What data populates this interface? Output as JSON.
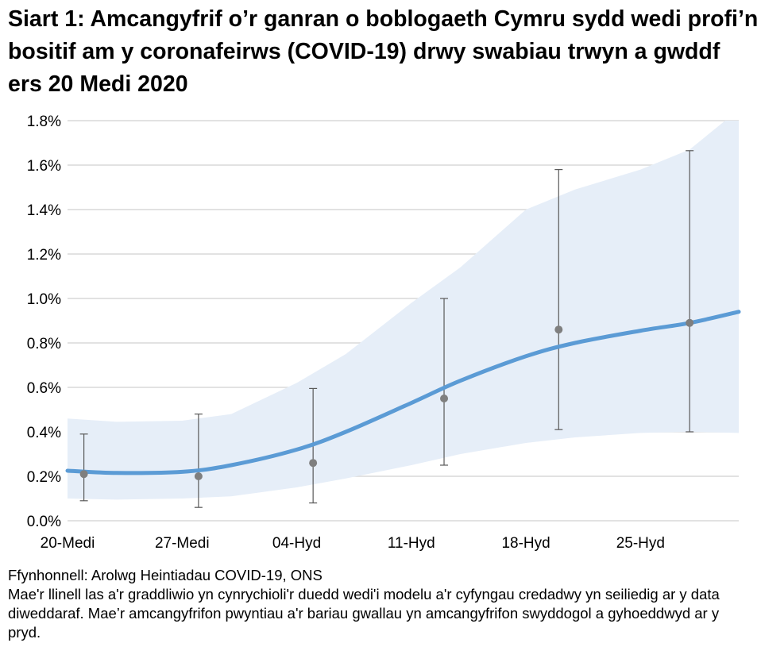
{
  "title": "Siart 1: Amcangyfrif o’r ganran o boblogaeth Cymru sydd wedi profi’n bositif am y coronafeirws (COVID-19) drwy swabiau trwyn a gwddf ers 20 Medi 2020",
  "source": "Ffynhonnell: Arolwg Heintiadau COVID-19, ONS",
  "note": "Mae'r llinell las a'r graddliwio yn cynrychioli'r duedd wedi'i modelu a'r cyfyngau credadwy yn seiliedig ar y data diweddaraf. Mae’r amcangyfrifon pwyntiau a'r bariau gwallau yn amcangyfrifon swyddogol a gyhoeddwyd ar y pryd.",
  "chart_data": {
    "type": "line",
    "title": "",
    "xlabel": "",
    "ylabel": "",
    "xlim": [
      "2020-09-20",
      "2020-10-31"
    ],
    "ylim": [
      0,
      1.8
    ],
    "grid": true,
    "x_ticks": [
      {
        "date": "2020-09-20",
        "label": "20-Medi"
      },
      {
        "date": "2020-09-27",
        "label": "27-Medi"
      },
      {
        "date": "2020-10-04",
        "label": "04-Hyd"
      },
      {
        "date": "2020-10-11",
        "label": "11-Hyd"
      },
      {
        "date": "2020-10-18",
        "label": "18-Hyd"
      },
      {
        "date": "2020-10-25",
        "label": "25-Hyd"
      }
    ],
    "y_ticks": [
      {
        "value": 0,
        "label": "0.0%"
      },
      {
        "value": 0.2,
        "label": "0.2%"
      },
      {
        "value": 0.4,
        "label": "0.4%"
      },
      {
        "value": 0.6,
        "label": "0.6%"
      },
      {
        "value": 0.8,
        "label": "0.8%"
      },
      {
        "value": 1.0,
        "label": "1.0%"
      },
      {
        "value": 1.2,
        "label": "1.2%"
      },
      {
        "value": 1.4,
        "label": "1.4%"
      },
      {
        "value": 1.6,
        "label": "1.6%"
      },
      {
        "value": 1.8,
        "label": "1.8%"
      }
    ],
    "colors": {
      "trend": "#5b9bd5",
      "band": "#e6eef8",
      "points": "#7f7f7f",
      "error_bars": "#595959",
      "grid": "#d9d9d9"
    },
    "modelled_trend": [
      {
        "date": "2020-09-20",
        "value": 0.225,
        "lower": 0.1,
        "upper": 0.46
      },
      {
        "date": "2020-09-23",
        "value": 0.215,
        "lower": 0.095,
        "upper": 0.445
      },
      {
        "date": "2020-09-27",
        "value": 0.22,
        "lower": 0.1,
        "upper": 0.45
      },
      {
        "date": "2020-09-30",
        "value": 0.25,
        "lower": 0.11,
        "upper": 0.48
      },
      {
        "date": "2020-10-04",
        "value": 0.32,
        "lower": 0.15,
        "upper": 0.62
      },
      {
        "date": "2020-10-07",
        "value": 0.4,
        "lower": 0.19,
        "upper": 0.75
      },
      {
        "date": "2020-10-11",
        "value": 0.53,
        "lower": 0.25,
        "upper": 0.98
      },
      {
        "date": "2020-10-14",
        "value": 0.63,
        "lower": 0.3,
        "upper": 1.14
      },
      {
        "date": "2020-10-18",
        "value": 0.74,
        "lower": 0.35,
        "upper": 1.4
      },
      {
        "date": "2020-10-21",
        "value": 0.8,
        "lower": 0.375,
        "upper": 1.49
      },
      {
        "date": "2020-10-25",
        "value": 0.855,
        "lower": 0.395,
        "upper": 1.58
      },
      {
        "date": "2020-10-28",
        "value": 0.89,
        "lower": 0.4,
        "upper": 1.67
      },
      {
        "date": "2020-10-31",
        "value": 0.94,
        "lower": 0.395,
        "upper": 1.85
      }
    ],
    "official_estimates": [
      {
        "date": "2020-09-21",
        "value": 0.21,
        "lower": 0.09,
        "upper": 0.39
      },
      {
        "date": "2020-09-28",
        "value": 0.2,
        "lower": 0.06,
        "upper": 0.48
      },
      {
        "date": "2020-10-05",
        "value": 0.26,
        "lower": 0.08,
        "upper": 0.595
      },
      {
        "date": "2020-10-13",
        "value": 0.55,
        "lower": 0.25,
        "upper": 1.0
      },
      {
        "date": "2020-10-20",
        "value": 0.86,
        "lower": 0.41,
        "upper": 1.58
      },
      {
        "date": "2020-10-28",
        "value": 0.89,
        "lower": 0.4,
        "upper": 1.665
      }
    ]
  }
}
